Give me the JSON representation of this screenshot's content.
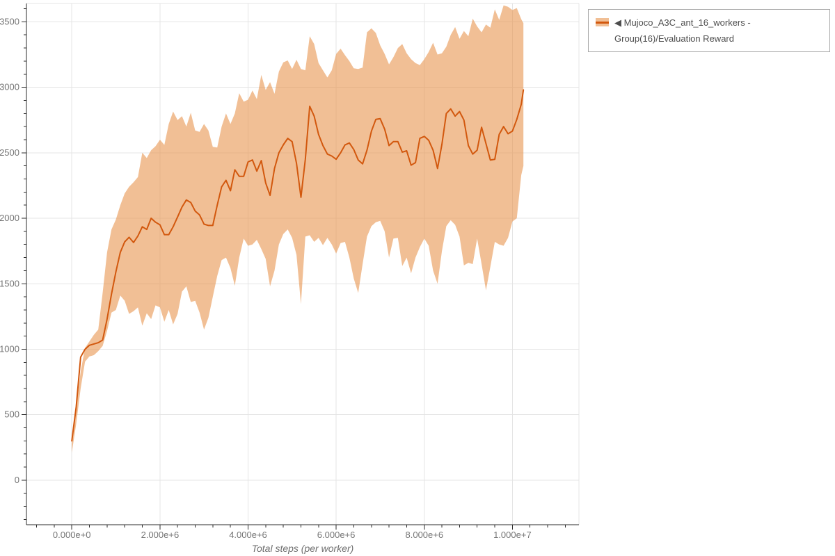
{
  "colors": {
    "line": "#d2580e",
    "band_fill": "#e8954f",
    "band_opacity": 0.6,
    "grid": "#e4e4e4",
    "axis": "#2b2b2b",
    "tick_label": "#757575",
    "legend_border": "#a6a6a6",
    "legend_text": "#4d4d4d"
  },
  "legend": {
    "label": "◀ Mujoco_A3C_ant_16_workers - Group(16)/Evaluation Reward"
  },
  "chart_data": {
    "type": "line",
    "title": "",
    "xlabel": "Total steps (per worker)",
    "ylabel": "",
    "legend_position": "top-right-outside",
    "grid": true,
    "x_scale_note": "x values are millions of steps",
    "axes": {
      "x_range_e6": [
        -1.03,
        11.51
      ],
      "y_range": [
        -340,
        3640
      ],
      "x_ticks_e6": [
        0,
        2,
        4,
        6,
        8,
        10
      ],
      "x_tick_labels": [
        "0.000e+0",
        "2.000e+6",
        "4.000e+6",
        "6.000e+6",
        "8.000e+6",
        "1.000e+7"
      ],
      "y_ticks": [
        0,
        500,
        1000,
        1500,
        2000,
        2500,
        3000,
        3500
      ],
      "y_tick_labels": [
        "0",
        "500",
        "1000",
        "1500",
        "2000",
        "2500",
        "3000",
        "3500"
      ],
      "x_minor_step_e6": 0.4,
      "y_minor_step": 100
    },
    "x_e6": [
      0.0,
      0.1,
      0.2,
      0.3,
      0.4,
      0.5,
      0.6,
      0.7,
      0.8,
      0.9,
      1.0,
      1.1,
      1.2,
      1.3,
      1.4,
      1.5,
      1.6,
      1.7,
      1.8,
      1.9,
      2.0,
      2.1,
      2.2,
      2.3,
      2.4,
      2.5,
      2.6,
      2.7,
      2.8,
      2.9,
      3.0,
      3.1,
      3.2,
      3.3,
      3.4,
      3.5,
      3.6,
      3.7,
      3.8,
      3.9,
      4.0,
      4.1,
      4.2,
      4.3,
      4.4,
      4.5,
      4.6,
      4.7,
      4.8,
      4.9,
      5.0,
      5.1,
      5.2,
      5.3,
      5.4,
      5.5,
      5.6,
      5.7,
      5.8,
      5.9,
      6.0,
      6.1,
      6.2,
      6.3,
      6.4,
      6.5,
      6.6,
      6.7,
      6.8,
      6.9,
      7.0,
      7.1,
      7.2,
      7.3,
      7.4,
      7.5,
      7.6,
      7.7,
      7.8,
      7.9,
      8.0,
      8.1,
      8.2,
      8.3,
      8.4,
      8.5,
      8.6,
      8.7,
      8.8,
      8.9,
      9.0,
      9.1,
      9.2,
      9.3,
      9.4,
      9.5,
      9.6,
      9.7,
      9.8,
      9.9,
      10.0,
      10.1,
      10.2,
      10.25
    ],
    "series": [
      {
        "name": "Mujoco_A3C_ant_16_workers - Group(16)/Evaluation Reward",
        "mean": [
          300,
          560,
          940,
          1000,
          1030,
          1040,
          1050,
          1070,
          1230,
          1420,
          1590,
          1740,
          1820,
          1855,
          1815,
          1865,
          1935,
          1915,
          2000,
          1970,
          1950,
          1875,
          1875,
          1935,
          2010,
          2085,
          2140,
          2120,
          2055,
          2025,
          1955,
          1945,
          1945,
          2100,
          2240,
          2290,
          2210,
          2370,
          2320,
          2320,
          2430,
          2445,
          2360,
          2440,
          2270,
          2175,
          2380,
          2500,
          2560,
          2610,
          2585,
          2420,
          2160,
          2450,
          2855,
          2780,
          2640,
          2555,
          2490,
          2475,
          2450,
          2500,
          2560,
          2575,
          2525,
          2445,
          2415,
          2520,
          2665,
          2755,
          2760,
          2680,
          2555,
          2585,
          2585,
          2505,
          2515,
          2405,
          2425,
          2610,
          2625,
          2595,
          2520,
          2380,
          2565,
          2800,
          2835,
          2780,
          2815,
          2750,
          2555,
          2490,
          2520,
          2695,
          2570,
          2445,
          2450,
          2640,
          2700,
          2645,
          2665,
          2755,
          2870,
          2980
        ],
        "lower": [
          210,
          430,
          700,
          905,
          945,
          955,
          985,
          1025,
          1140,
          1280,
          1300,
          1410,
          1370,
          1270,
          1290,
          1320,
          1180,
          1275,
          1230,
          1335,
          1320,
          1210,
          1300,
          1190,
          1270,
          1440,
          1480,
          1360,
          1370,
          1280,
          1150,
          1240,
          1400,
          1560,
          1680,
          1700,
          1620,
          1485,
          1700,
          1845,
          1790,
          1800,
          1835,
          1765,
          1690,
          1480,
          1600,
          1800,
          1880,
          1915,
          1850,
          1720,
          1345,
          1860,
          1870,
          1820,
          1850,
          1795,
          1850,
          1800,
          1730,
          1810,
          1820,
          1700,
          1540,
          1430,
          1650,
          1860,
          1940,
          1970,
          1980,
          1900,
          1700,
          1845,
          1850,
          1635,
          1700,
          1580,
          1700,
          1780,
          1845,
          1790,
          1600,
          1500,
          1750,
          1940,
          1985,
          1950,
          1860,
          1640,
          1660,
          1650,
          1845,
          1650,
          1450,
          1630,
          1820,
          1800,
          1790,
          1850,
          1975,
          2000,
          2330,
          2400
        ],
        "upper": [
          330,
          560,
          830,
          1010,
          1060,
          1110,
          1150,
          1430,
          1740,
          1915,
          1990,
          2100,
          2190,
          2240,
          2275,
          2315,
          2500,
          2460,
          2520,
          2550,
          2600,
          2560,
          2720,
          2815,
          2750,
          2780,
          2700,
          2805,
          2670,
          2660,
          2720,
          2670,
          2545,
          2540,
          2700,
          2800,
          2720,
          2800,
          2955,
          2890,
          2905,
          2975,
          2910,
          3095,
          2980,
          3040,
          2950,
          3120,
          3190,
          3205,
          3140,
          3210,
          3140,
          3130,
          3390,
          3330,
          3185,
          3130,
          3075,
          3130,
          3255,
          3295,
          3245,
          3200,
          3145,
          3140,
          3150,
          3420,
          3450,
          3415,
          3320,
          3255,
          3175,
          3230,
          3300,
          3330,
          3260,
          3215,
          3185,
          3170,
          3215,
          3270,
          3340,
          3250,
          3260,
          3310,
          3400,
          3460,
          3370,
          3430,
          3390,
          3525,
          3465,
          3420,
          3480,
          3455,
          3595,
          3515,
          3625,
          3615,
          3590,
          3605,
          3520,
          3490
        ]
      }
    ]
  }
}
